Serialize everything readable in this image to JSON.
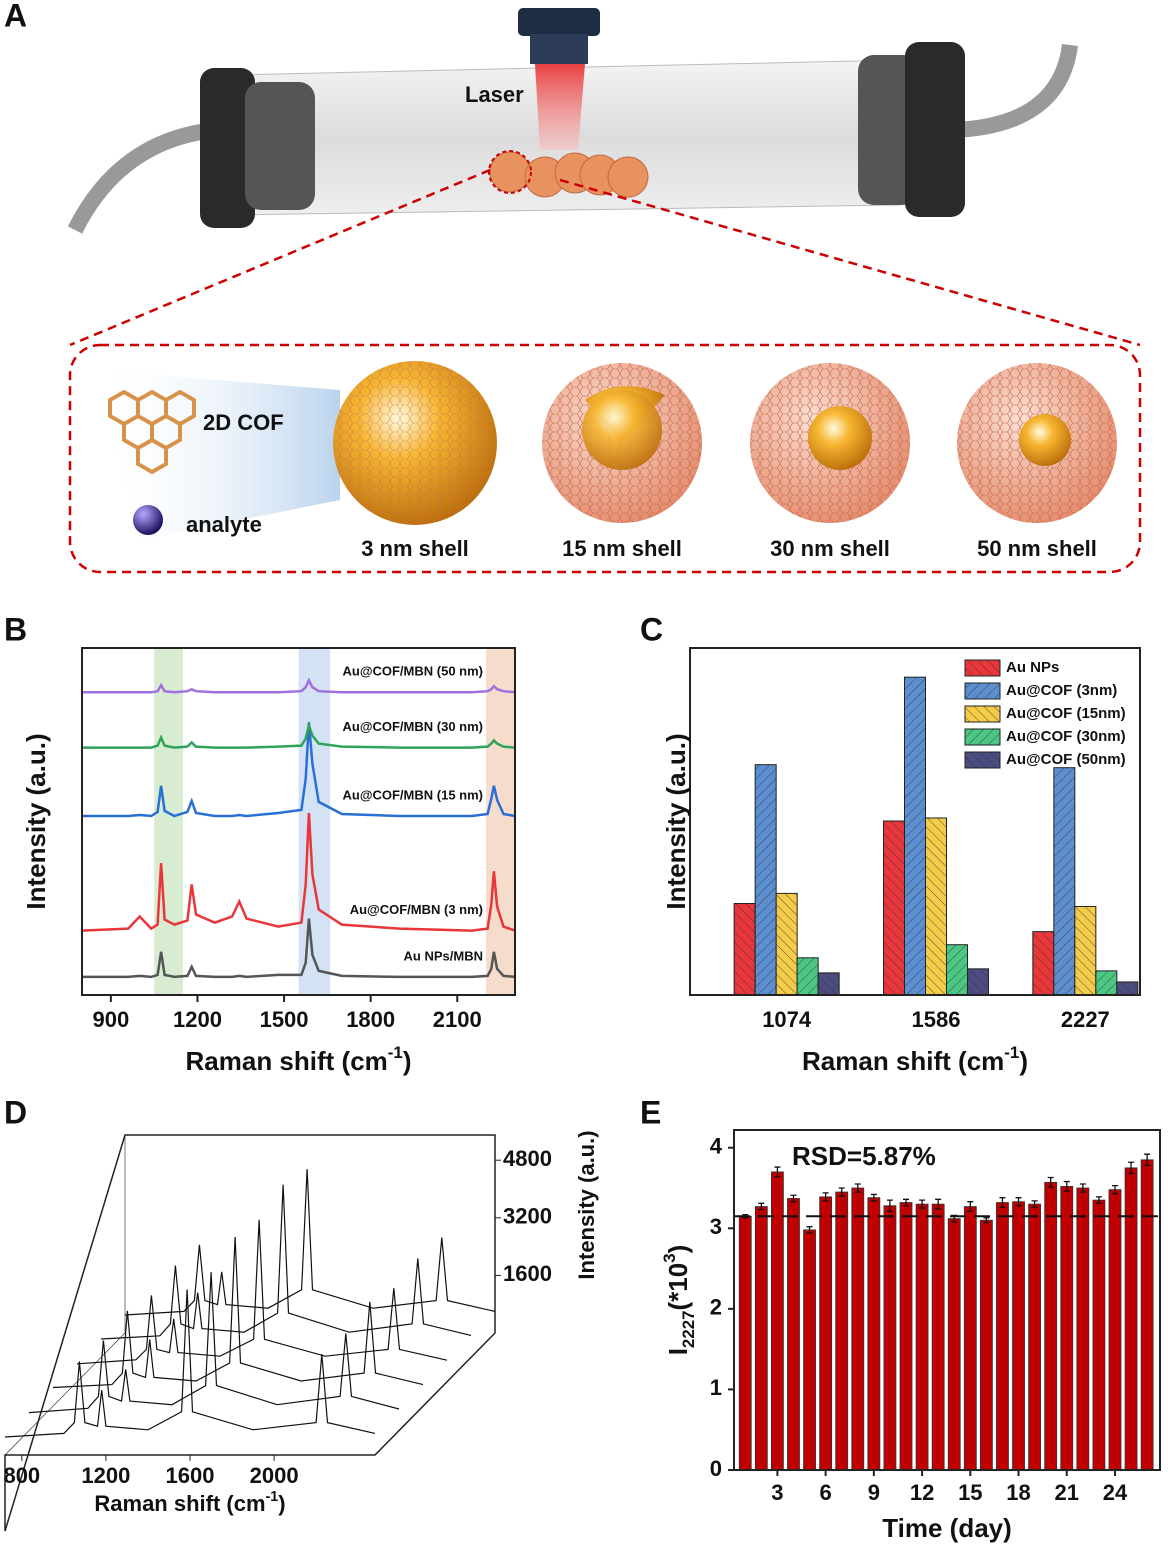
{
  "panel_a": {
    "label": "A",
    "laser": "Laser",
    "cof": "2D COF",
    "analyte": "analyte",
    "shells": [
      "3 nm shell",
      "15 nm shell",
      "30 nm shell",
      "50 nm shell"
    ]
  },
  "chart_data": [
    {
      "type": "line",
      "panel": "B",
      "x": [
        800,
        960,
        1000,
        1040,
        1062,
        1074,
        1086,
        1120,
        1165,
        1180,
        1195,
        1260,
        1320,
        1345,
        1370,
        1480,
        1560,
        1575,
        1586,
        1598,
        1620,
        1700,
        1900,
        2150,
        2205,
        2218,
        2227,
        2238,
        2260,
        2300
      ],
      "xlim": [
        800,
        2300
      ],
      "xticks": [
        900,
        1200,
        1500,
        1800,
        2100
      ],
      "ylim": [
        0,
        345
      ],
      "x_label": {
        "text": "Raman shift (cm",
        "sup": "-1",
        "end": ")"
      },
      "y_label": "Intensity (a.u.)",
      "highlights": [
        {
          "xmin": 1050,
          "xmax": 1150,
          "color": "#d8ecd2"
        },
        {
          "xmin": 1550,
          "xmax": 1660,
          "color": "#d3e3f3"
        },
        {
          "xmin": 2200,
          "xmax": 2300,
          "color": "#f6dccb"
        }
      ],
      "series": [
        {
          "name": "Au NPs/MBN",
          "color": "#555555",
          "values": [
            18,
            18,
            19,
            18,
            20,
            43,
            20,
            18,
            19,
            28,
            19,
            18,
            18,
            19,
            18,
            20,
            20,
            32,
            76,
            40,
            24,
            19,
            18,
            18,
            19,
            26,
            43,
            26,
            19,
            18
          ]
        },
        {
          "name": "Au@COF/MBN (3 nm)",
          "color": "#e8363a",
          "values": [
            64,
            66,
            78,
            66,
            70,
            131,
            75,
            70,
            74,
            110,
            80,
            72,
            78,
            93,
            76,
            68,
            72,
            110,
            181,
            120,
            85,
            70,
            66,
            64,
            66,
            90,
            123,
            88,
            68,
            64
          ]
        },
        {
          "name": "Au@COF/MBN (15 nm)",
          "color": "#2a6fd6",
          "values": [
            178,
            178,
            179,
            178,
            182,
            208,
            183,
            178,
            182,
            193,
            181,
            178,
            178,
            179,
            178,
            181,
            184,
            215,
            271,
            230,
            192,
            180,
            178,
            178,
            180,
            195,
            208,
            194,
            180,
            178
          ]
        },
        {
          "name": "Au@COF/MBN (30 nm)",
          "color": "#2ea35a",
          "values": [
            246,
            246,
            246,
            246,
            248,
            256,
            248,
            246,
            247,
            251,
            247,
            246,
            246,
            246,
            246,
            247,
            248,
            255,
            268,
            258,
            250,
            247,
            246,
            246,
            247,
            250,
            253,
            250,
            247,
            246
          ]
        },
        {
          "name": "Au@COF/MBN (50 nm)",
          "color": "#a070e0",
          "values": [
            301,
            301,
            301,
            301,
            302,
            308,
            302,
            301,
            302,
            304,
            302,
            301,
            301,
            301,
            301,
            301,
            302,
            306,
            313,
            306,
            302,
            301,
            301,
            301,
            302,
            304,
            307,
            304,
            302,
            301
          ]
        }
      ]
    },
    {
      "type": "bar",
      "panel": "C",
      "categories": [
        "1074",
        "1586",
        "2227"
      ],
      "ylim": [
        0,
        345
      ],
      "legend": "upper right",
      "x_label": {
        "text": "Raman shift (cm",
        "sup": "-1",
        "end": ")"
      },
      "y_label": "Intensity (a.u.)",
      "series": [
        {
          "name": "Au NPs",
          "color": "#e8363a",
          "values": [
            91,
            173,
            63
          ]
        },
        {
          "name": "Au@COF (3nm)",
          "color": "#5b8fcf",
          "values": [
            229,
            316,
            226
          ]
        },
        {
          "name": "Au@COF (15nm)",
          "color": "#f4cc4a",
          "values": [
            101,
            176,
            88
          ]
        },
        {
          "name": "Au@COF (30nm)",
          "color": "#4cc783",
          "values": [
            37,
            50,
            24
          ]
        },
        {
          "name": "Au@COF (50nm)",
          "color": "#4c4c80",
          "values": [
            22,
            26,
            13
          ]
        }
      ]
    },
    {
      "type": "waterfall",
      "panel": "D",
      "x": [
        720,
        1000,
        1050,
        1074,
        1100,
        1160,
        1180,
        1200,
        1400,
        1560,
        1586,
        1612,
        1900,
        2200,
        2227,
        2254,
        2480
      ],
      "xlim": [
        720,
        2480
      ],
      "xticks": [
        800,
        1200,
        1600,
        2000
      ],
      "zlim": [
        0,
        5500
      ],
      "zticks": [
        1600,
        3200,
        4800
      ],
      "x_label": {
        "text": "Raman shift (cm",
        "sup": "-1",
        "end": ")"
      },
      "z_label": "Intensity (a.u.)",
      "series": [
        {
          "values": [
            500,
            600,
            900,
            2600,
            900,
            800,
            1800,
            800,
            700,
            1200,
            4600,
            1200,
            700,
            900,
            2800,
            900,
            600
          ]
        },
        {
          "values": [
            500,
            620,
            950,
            2500,
            950,
            820,
            1700,
            820,
            720,
            1250,
            4400,
            1250,
            720,
            950,
            2700,
            950,
            600
          ]
        },
        {
          "values": [
            520,
            600,
            920,
            2650,
            920,
            800,
            1850,
            800,
            700,
            1200,
            4700,
            1200,
            700,
            920,
            2900,
            920,
            600
          ]
        },
        {
          "values": [
            500,
            610,
            900,
            2400,
            900,
            810,
            1750,
            810,
            710,
            1180,
            4500,
            1180,
            710,
            900,
            2600,
            900,
            600
          ]
        },
        {
          "values": [
            510,
            600,
            930,
            2550,
            930,
            800,
            1800,
            800,
            700,
            1230,
            4800,
            1230,
            700,
            930,
            2750,
            930,
            610
          ]
        },
        {
          "values": [
            500,
            600,
            900,
            2450,
            900,
            790,
            1700,
            790,
            690,
            1200,
            4550,
            1200,
            690,
            900,
            2650,
            900,
            600
          ]
        }
      ]
    },
    {
      "type": "errorbar",
      "panel": "E",
      "x": [
        1,
        2,
        3,
        4,
        5,
        6,
        7,
        8,
        9,
        10,
        11,
        12,
        13,
        14,
        15,
        16,
        17,
        18,
        19,
        20,
        21,
        22,
        23,
        24,
        25,
        26
      ],
      "values": [
        3.15,
        3.27,
        3.7,
        3.37,
        2.98,
        3.39,
        3.45,
        3.5,
        3.38,
        3.28,
        3.32,
        3.3,
        3.3,
        3.12,
        3.27,
        3.1,
        3.32,
        3.33,
        3.3,
        3.57,
        3.52,
        3.5,
        3.35,
        3.48,
        3.75,
        3.85
      ],
      "errors": [
        0.02,
        0.04,
        0.06,
        0.04,
        0.04,
        0.05,
        0.05,
        0.05,
        0.04,
        0.07,
        0.04,
        0.05,
        0.06,
        0.04,
        0.06,
        0.03,
        0.06,
        0.05,
        0.04,
        0.06,
        0.06,
        0.05,
        0.04,
        0.05,
        0.07,
        0.07
      ],
      "xlim": [
        0.3,
        26.8
      ],
      "xticks": [
        3,
        6,
        9,
        12,
        15,
        18,
        21,
        24
      ],
      "ylim": [
        0,
        4.22
      ],
      "yticks": [
        0,
        1,
        2,
        3,
        4
      ],
      "color": "#c00000",
      "reference_line": 3.15,
      "annotation": "RSD=5.87%",
      "x_label": "Time (day)",
      "y_label": {
        "text": "I",
        "sub": "2227",
        "mid": "(*10",
        "sup": "3",
        "end": ")"
      }
    }
  ]
}
